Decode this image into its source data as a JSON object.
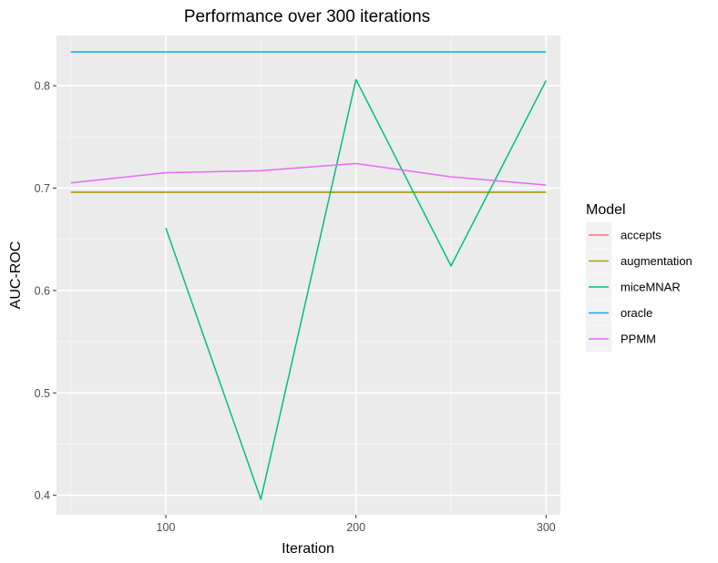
{
  "chart_data": {
    "type": "line",
    "title": "Performance over 300 iterations",
    "xlabel": "Iteration",
    "ylabel": "AUC-ROC",
    "xlim": [
      42.5,
      307.5
    ],
    "ylim": [
      0.381,
      0.849
    ],
    "x_ticks": [
      100,
      200,
      300
    ],
    "x_tick_labels": [
      "100",
      "200",
      "300"
    ],
    "y_ticks": [
      0.4,
      0.5,
      0.6,
      0.7,
      0.8
    ],
    "y_tick_labels": [
      "0.4",
      "0.5",
      "0.6",
      "0.7",
      "0.8"
    ],
    "grid": true,
    "legend_title": "Model",
    "legend_position": "right",
    "series": [
      {
        "name": "accepts",
        "color": "#F8766D",
        "points": [
          [
            50,
            0.696
          ],
          [
            100,
            0.696
          ],
          [
            150,
            0.696
          ],
          [
            200,
            0.696
          ],
          [
            250,
            0.696
          ],
          [
            300,
            0.696
          ]
        ]
      },
      {
        "name": "augmentation",
        "color": "#A3A500",
        "points": [
          [
            50,
            0.696
          ],
          [
            100,
            0.696
          ],
          [
            150,
            0.696
          ],
          [
            200,
            0.696
          ],
          [
            250,
            0.696
          ],
          [
            300,
            0.696
          ]
        ]
      },
      {
        "name": "miceMNAR",
        "color": "#00BF7D",
        "points": [
          [
            100,
            0.661
          ],
          [
            150,
            0.396
          ],
          [
            200,
            0.806
          ],
          [
            250,
            0.624
          ],
          [
            300,
            0.805
          ]
        ]
      },
      {
        "name": "oracle",
        "color": "#00B0F6",
        "points": [
          [
            50,
            0.833
          ],
          [
            100,
            0.833
          ],
          [
            150,
            0.833
          ],
          [
            200,
            0.833
          ],
          [
            250,
            0.833
          ],
          [
            300,
            0.833
          ]
        ]
      },
      {
        "name": "PPMM",
        "color": "#E76BF3",
        "points": [
          [
            50,
            0.705
          ],
          [
            100,
            0.715
          ],
          [
            150,
            0.717
          ],
          [
            200,
            0.724
          ],
          [
            250,
            0.711
          ],
          [
            300,
            0.703
          ]
        ]
      }
    ]
  }
}
